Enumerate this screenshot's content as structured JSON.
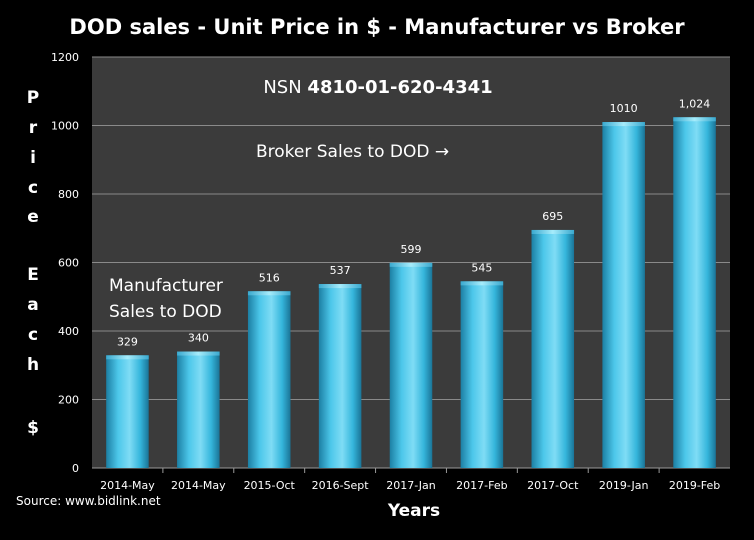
{
  "chart_data": {
    "type": "bar",
    "title": "DOD sales - Unit Price in $ - Manufacturer vs Broker",
    "xlabel": "Years",
    "ylabel": "Price Each $",
    "ylabel_chars": [
      "P",
      "r",
      "i",
      "c",
      "e",
      "E",
      "a",
      "c",
      "h",
      "$"
    ],
    "ylim": [
      0,
      1200
    ],
    "yticks": [
      0,
      200,
      400,
      600,
      800,
      1000,
      1200
    ],
    "categories": [
      "2014-May",
      "2014-May",
      "2015-Oct",
      "2016-Sept",
      "2017-Jan",
      "2017-Feb",
      "2017-Oct",
      "2019-Jan",
      "2019-Feb"
    ],
    "values": [
      329,
      340,
      516,
      537,
      599,
      545,
      695,
      1010,
      1024
    ],
    "data_labels": [
      "329",
      "340",
      "516",
      "537",
      "599",
      "545",
      "695",
      "1010",
      "1,024"
    ],
    "grid": true,
    "annotations": {
      "nsn_prefix": "NSN ",
      "nsn_number": "4810-01-620-4341",
      "broker": "Broker Sales to DOD →",
      "manufacturer_line1": "Manufacturer",
      "manufacturer_line2": "Sales to DOD"
    },
    "source": "Source: www.bidlink.net",
    "colors": {
      "background": "#000000",
      "plot_area": "#3b3b3b",
      "gridline": "#8a8a8a",
      "bar_main": "#35b6dc",
      "bar_light": "#7fdcf5",
      "bar_dark": "#1c7fa3",
      "text": "#ffffff"
    }
  }
}
